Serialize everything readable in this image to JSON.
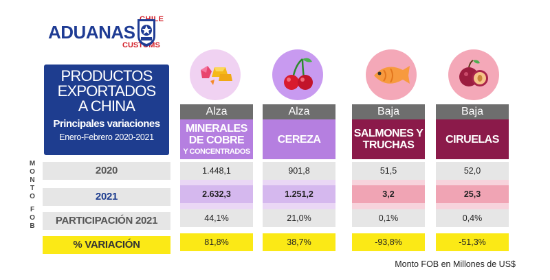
{
  "logo": {
    "chile": "CHILE",
    "main": "ADUANAS",
    "customs": "CUSTOMS"
  },
  "title": {
    "main": "PRODUCTOS\nEXPORTADOS\nA CHINA",
    "sub": "Principales variaciones",
    "date": "Enero-Febrero 2020-2021"
  },
  "vertical_label_1": "M\nO\nN\nT\nO",
  "vertical_label_2": "F\nO\nB",
  "rows": {
    "r2020": "2020",
    "r2021": "2021",
    "participacion": "PARTICIPACIÓN 2021",
    "variacion": "% VARIACIÓN"
  },
  "products": [
    {
      "trend": "Alza",
      "name": "MINERALES\nDE COBRE",
      "name2": "Y CONCENTRADOS",
      "v2020": "1.448,1",
      "v2021": "2.632,3",
      "part": "44,1%",
      "var": "81,8%",
      "icon": "copper-ore-icon"
    },
    {
      "trend": "Alza",
      "name": "CEREZA",
      "name2": "",
      "v2020": "901,8",
      "v2021": "1.251,2",
      "part": "21,0%",
      "var": "38,7%",
      "icon": "cherry-icon"
    },
    {
      "trend": "Baja",
      "name": "SALMONES Y\nTRUCHAS",
      "name2": "",
      "v2020": "51,5",
      "v2021": "3,2",
      "part": "0,1%",
      "var": "-93,8%",
      "icon": "fish-icon"
    },
    {
      "trend": "Baja",
      "name": "CIRUELAS",
      "name2": "",
      "v2020": "52,0",
      "v2021": "25,3",
      "part": "0,4%",
      "var": "-51,3%",
      "icon": "plum-icon"
    }
  ],
  "footnote": "Monto FOB en Millones de US$",
  "colors": {
    "navy": "#1e3d8f",
    "alza_name": "#b57fe0",
    "baja_name": "#8b1a4a",
    "gray_header": "#6e6e6e",
    "yellow": "#fbe916"
  }
}
